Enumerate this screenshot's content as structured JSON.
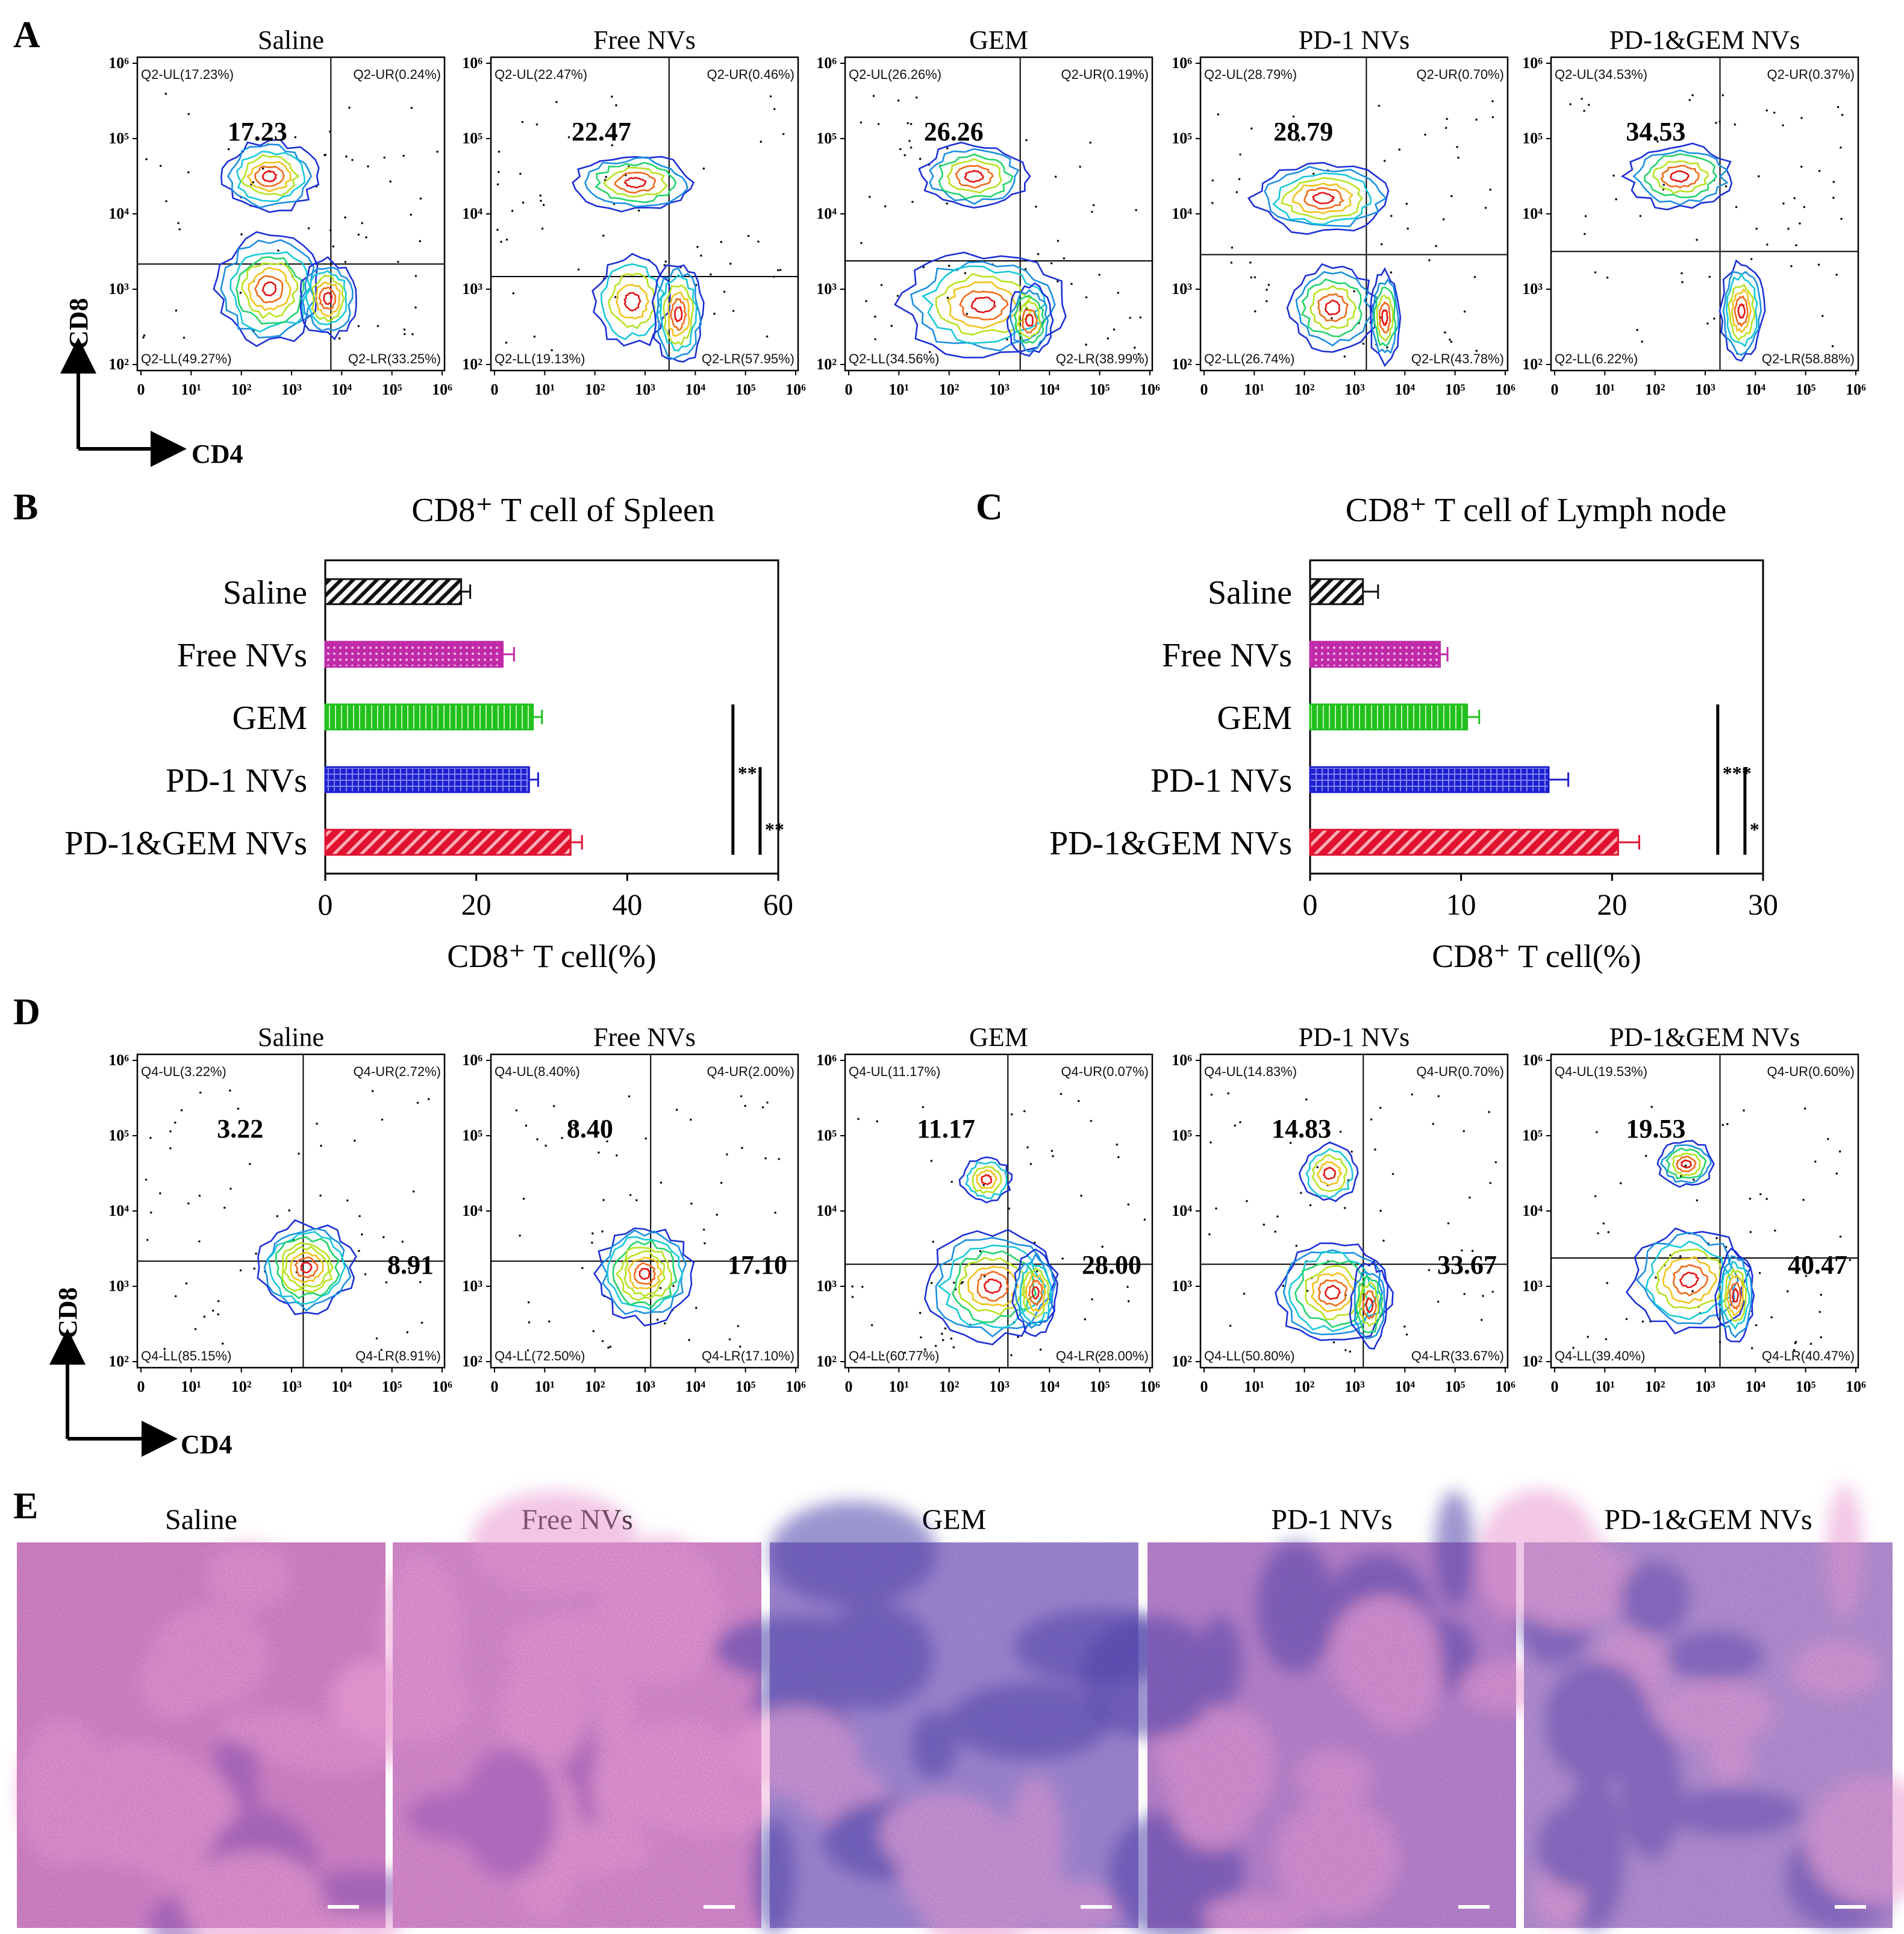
{
  "panel_labels": {
    "A": "A",
    "B": "B",
    "C": "C",
    "D": "D",
    "E": "E"
  },
  "colors": {
    "contour": [
      "#1c2fd6",
      "#1a8fe0",
      "#16c8d8",
      "#22d36b",
      "#b6e21f",
      "#f2c21a",
      "#f06a1a",
      "#e31414"
    ]
  },
  "flow_spleen": {
    "x_axis": "CD4",
    "y_axis": "CD8",
    "x_ticks": [
      "0",
      "10¹",
      "10²",
      "10³",
      "10⁴",
      "10⁵",
      "10⁶"
    ],
    "y_ticks": [
      "10²",
      "10³",
      "10⁴",
      "10⁵",
      "10⁶"
    ],
    "plots": [
      {
        "title": "Saline",
        "big": "17.23",
        "ul": "Q2-UL(17.23%)",
        "ur": "Q2-UR(0.24%)",
        "ll": "Q2-LL(49.27%)",
        "lr": "Q2-LR(33.25%)"
      },
      {
        "title": "Free NVs",
        "big": "22.47",
        "ul": "Q2-UL(22.47%)",
        "ur": "Q2-UR(0.46%)",
        "ll": "Q2-LL(19.13%)",
        "lr": "Q2-LR(57.95%)"
      },
      {
        "title": "GEM",
        "big": "26.26",
        "ul": "Q2-UL(26.26%)",
        "ur": "Q2-UR(0.19%)",
        "ll": "Q2-LL(34.56%)",
        "lr": "Q2-LR(38.99%)"
      },
      {
        "title": "PD-1 NVs",
        "big": "28.79",
        "ul": "Q2-UL(28.79%)",
        "ur": "Q2-UR(0.70%)",
        "ll": "Q2-LL(26.74%)",
        "lr": "Q2-LR(43.78%)"
      },
      {
        "title": "PD-1&GEM NVs",
        "big": "34.53",
        "ul": "Q2-UL(34.53%)",
        "ur": "Q2-UR(0.37%)",
        "ll": "Q2-LL(6.22%)",
        "lr": "Q2-LR(58.88%)"
      }
    ]
  },
  "flow_lymph": {
    "x_axis": "CD4",
    "y_axis": "CD8",
    "x_ticks": [
      "0",
      "10¹",
      "10²",
      "10³",
      "10⁴",
      "10⁵",
      "10⁶"
    ],
    "y_ticks": [
      "10²",
      "10³",
      "10⁴",
      "10⁵",
      "10⁶"
    ],
    "plots": [
      {
        "title": "Saline",
        "big": "3.22",
        "big2": "8.91",
        "ul": "Q4-UL(3.22%)",
        "ur": "Q4-UR(2.72%)",
        "ll": "Q4-LL(85.15%)",
        "lr": "Q4-LR(8.91%)"
      },
      {
        "title": "Free NVs",
        "big": "8.40",
        "big2": "17.10",
        "ul": "Q4-UL(8.40%)",
        "ur": "Q4-UR(2.00%)",
        "ll": "Q4-LL(72.50%)",
        "lr": "Q4-LR(17.10%)"
      },
      {
        "title": "GEM",
        "big": "11.17",
        "big2": "28.00",
        "ul": "Q4-UL(11.17%)",
        "ur": "Q4-UR(0.07%)",
        "ll": "Q4-LL(60.77%)",
        "lr": "Q4-LR(28.00%)"
      },
      {
        "title": "PD-1 NVs",
        "big": "14.83",
        "big2": "33.67",
        "ul": "Q4-UL(14.83%)",
        "ur": "Q4-UR(0.70%)",
        "ll": "Q4-LL(50.80%)",
        "lr": "Q4-LR(33.67%)"
      },
      {
        "title": "PD-1&GEM NVs",
        "big": "19.53",
        "big2": "40.47",
        "ul": "Q4-UL(19.53%)",
        "ur": "Q4-UR(0.60%)",
        "ll": "Q4-LL(39.40%)",
        "lr": "Q4-LR(40.47%)"
      }
    ]
  },
  "chart_data": [
    {
      "type": "bar",
      "orientation": "horizontal",
      "title": "CD8⁺ T cell of Spleen",
      "xlabel": "CD8⁺ T cell(%)",
      "categories": [
        "Saline",
        "Free NVs",
        "GEM",
        "PD-1 NVs",
        "PD-1&GEM NVs"
      ],
      "values": [
        18,
        23.5,
        27.5,
        27,
        32.5
      ],
      "errors": [
        1.2,
        1.5,
        1.2,
        1.2,
        1.5
      ],
      "colors": [
        "#111111",
        "#c02aa8",
        "#22c01e",
        "#1f1fcf",
        "#e01230"
      ],
      "xlim": [
        0,
        60
      ],
      "xticks": [
        "0",
        "20",
        "40",
        "60"
      ],
      "significance": [
        "**",
        "**"
      ]
    },
    {
      "type": "bar",
      "orientation": "horizontal",
      "title": "CD8⁺ T cell of Lymph node",
      "xlabel": "CD8⁺ T cell(%)",
      "categories": [
        "Saline",
        "Free NVs",
        "GEM",
        "PD-1 NVs",
        "PD-1&GEM NVs"
      ],
      "values": [
        3.5,
        8.6,
        10.4,
        15.8,
        20.4
      ],
      "errors": [
        1.0,
        0.5,
        0.8,
        1.3,
        1.4
      ],
      "colors": [
        "#111111",
        "#c02aa8",
        "#22c01e",
        "#1f1fcf",
        "#e01230"
      ],
      "xlim": [
        0,
        30
      ],
      "xticks": [
        "0",
        "10",
        "20",
        "30"
      ],
      "significance": [
        "***",
        "*"
      ]
    }
  ],
  "histology": {
    "titles": [
      "Saline",
      "Free NVs",
      "GEM",
      "PD-1 NVs",
      "PD-1&GEM NVs"
    ]
  }
}
